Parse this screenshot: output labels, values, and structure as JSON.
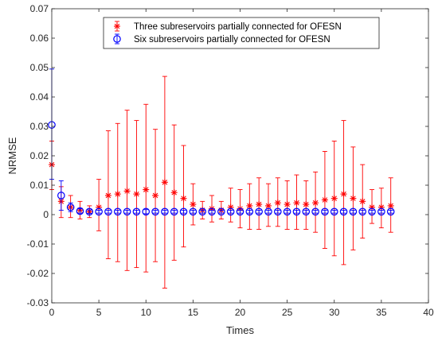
{
  "chart_data": {
    "type": "scatter",
    "xlabel": "Times",
    "ylabel": "NRMSE",
    "xlim": [
      0,
      40
    ],
    "ylim": [
      -0.03,
      0.07
    ],
    "xticks": [
      0,
      5,
      10,
      15,
      20,
      25,
      30,
      35,
      40
    ],
    "yticks": [
      -0.03,
      -0.02,
      -0.01,
      0,
      0.01,
      0.02,
      0.03,
      0.04,
      0.05,
      0.06,
      0.07
    ],
    "xtick_labels": [
      "0",
      "5",
      "10",
      "15",
      "20",
      "25",
      "30",
      "35",
      "40"
    ],
    "ytick_labels": [
      "-0.03",
      "-0.02",
      "-0.01",
      "0",
      "0.01",
      "0.02",
      "0.03",
      "0.04",
      "0.05",
      "0.06",
      "0.07"
    ],
    "legend_position": "top-right",
    "grid": false,
    "series": [
      {
        "name": "Three subreservoirs partially connected for OFESN",
        "marker": "asterisk",
        "color": "#ff0000",
        "x": [
          0,
          1,
          2,
          3,
          4,
          5,
          6,
          7,
          8,
          9,
          10,
          11,
          12,
          13,
          14,
          15,
          16,
          17,
          18,
          19,
          20,
          21,
          22,
          23,
          24,
          25,
          26,
          27,
          28,
          29,
          30,
          31,
          32,
          33,
          34,
          35,
          36
        ],
        "y": [
          0.017,
          0.0045,
          0.0025,
          0.0015,
          0.001,
          0.0025,
          0.0065,
          0.007,
          0.008,
          0.007,
          0.0085,
          0.0065,
          0.011,
          0.0075,
          0.0055,
          0.0035,
          0.0015,
          0.002,
          0.0015,
          0.0025,
          0.002,
          0.003,
          0.0035,
          0.003,
          0.004,
          0.0035,
          0.004,
          0.0035,
          0.004,
          0.005,
          0.0055,
          0.007,
          0.0055,
          0.0045,
          0.0025,
          0.0025,
          0.003
        ],
        "lower": [
          0.0085,
          -0.001,
          -0.001,
          -0.0015,
          -0.001,
          -0.0055,
          -0.015,
          -0.016,
          -0.019,
          -0.018,
          -0.0195,
          -0.016,
          -0.025,
          -0.0155,
          -0.011,
          -0.0035,
          -0.0015,
          -0.0025,
          -0.0015,
          -0.0025,
          -0.0045,
          -0.005,
          -0.005,
          -0.004,
          -0.004,
          -0.005,
          -0.005,
          -0.005,
          -0.006,
          -0.0115,
          -0.014,
          -0.017,
          -0.012,
          -0.008,
          -0.003,
          -0.0045,
          -0.006
        ],
        "upper": [
          0.025,
          0.0095,
          0.0065,
          0.0045,
          0.003,
          0.012,
          0.0285,
          0.031,
          0.0355,
          0.032,
          0.0375,
          0.029,
          0.047,
          0.0305,
          0.0235,
          0.0105,
          0.0045,
          0.0065,
          0.0045,
          0.009,
          0.0085,
          0.0105,
          0.0125,
          0.0105,
          0.0125,
          0.0115,
          0.0135,
          0.0115,
          0.0145,
          0.0215,
          0.025,
          0.032,
          0.023,
          0.017,
          0.0085,
          0.009,
          0.0125
        ]
      },
      {
        "name": "Six subreservoirs partially connected for OFESN",
        "marker": "circle",
        "color": "#0000ff",
        "x": [
          0,
          1,
          2,
          3,
          4,
          5,
          6,
          7,
          8,
          9,
          10,
          11,
          12,
          13,
          14,
          15,
          16,
          17,
          18,
          19,
          20,
          21,
          22,
          23,
          24,
          25,
          26,
          27,
          28,
          29,
          30,
          31,
          32,
          33,
          34,
          35,
          36
        ],
        "y": [
          0.0305,
          0.0065,
          0.0025,
          0.0012,
          0.001,
          0.001,
          0.001,
          0.001,
          0.001,
          0.001,
          0.001,
          0.001,
          0.001,
          0.001,
          0.001,
          0.001,
          0.001,
          0.001,
          0.001,
          0.001,
          0.001,
          0.001,
          0.001,
          0.001,
          0.001,
          0.001,
          0.001,
          0.001,
          0.001,
          0.001,
          0.001,
          0.001,
          0.001,
          0.001,
          0.001,
          0.001,
          0.001
        ],
        "lower": [
          0.012,
          0.0015,
          0.001,
          0.0005,
          0.0004,
          0.0005,
          0.0005,
          0.0005,
          0.0005,
          0.0005,
          0.0003,
          0.0005,
          0.0005,
          0.0005,
          0.0005,
          0.0005,
          0.0005,
          0.0005,
          0.0005,
          0.0005,
          0.0005,
          0.0005,
          0.0005,
          0.0005,
          0.0005,
          0.0005,
          0.0005,
          0.0005,
          0.0005,
          0.0005,
          0.0005,
          0.0005,
          0.0005,
          0.0005,
          0.0005,
          0.0005,
          0.0005
        ],
        "upper": [
          0.0495,
          0.0115,
          0.004,
          0.002,
          0.0016,
          0.0015,
          0.0015,
          0.0015,
          0.0015,
          0.0015,
          0.0017,
          0.0015,
          0.0015,
          0.0015,
          0.0015,
          0.0015,
          0.0015,
          0.0015,
          0.0015,
          0.0015,
          0.0015,
          0.0015,
          0.0015,
          0.0015,
          0.0015,
          0.0015,
          0.0015,
          0.0015,
          0.0015,
          0.0015,
          0.0015,
          0.0015,
          0.0015,
          0.0015,
          0.0015,
          0.0015,
          0.0015
        ]
      }
    ]
  }
}
